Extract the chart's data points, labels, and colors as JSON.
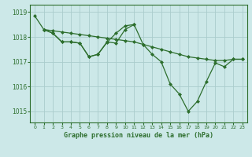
{
  "title": "Graphe pression niveau de la mer (hPa)",
  "background_color": "#cce8e8",
  "plot_bg_color": "#cce8e8",
  "bottom_bar_color": "#2d6e2d",
  "grid_color": "#aacccc",
  "line_color": "#2d6e2d",
  "ylim": [
    1014.55,
    1019.3
  ],
  "xlim": [
    -0.5,
    23.5
  ],
  "yticks": [
    1015,
    1016,
    1017,
    1018,
    1019
  ],
  "xticks": [
    0,
    1,
    2,
    3,
    4,
    5,
    6,
    7,
    8,
    9,
    10,
    11,
    12,
    13,
    14,
    15,
    16,
    17,
    18,
    19,
    20,
    21,
    22,
    23
  ],
  "series": [
    {
      "x": [
        0,
        1,
        2,
        3,
        4,
        5,
        6,
        7,
        8,
        9,
        10,
        11,
        12,
        13,
        14,
        15,
        16,
        17,
        18,
        19,
        20,
        21,
        22,
        23
      ],
      "y": [
        1018.85,
        1018.3,
        1018.15,
        1017.8,
        1017.8,
        1017.75,
        1017.2,
        1017.3,
        1017.8,
        1017.75,
        1018.3,
        1018.5,
        1017.7,
        1017.3,
        1017.0,
        1016.1,
        1015.7,
        1015.0,
        1015.4,
        1016.2,
        1016.95,
        1016.8,
        1017.1,
        1017.1
      ]
    },
    {
      "x": [
        1,
        2,
        3,
        4,
        5,
        6,
        7,
        8,
        9,
        10,
        11,
        12,
        13,
        14,
        15,
        16,
        17,
        18,
        19,
        20,
        21,
        22,
        23
      ],
      "y": [
        1018.3,
        1018.25,
        1018.2,
        1018.15,
        1018.1,
        1018.05,
        1018.0,
        1017.95,
        1017.9,
        1017.85,
        1017.8,
        1017.7,
        1017.6,
        1017.5,
        1017.4,
        1017.3,
        1017.2,
        1017.15,
        1017.1,
        1017.05,
        1017.05,
        1017.1,
        1017.1
      ]
    },
    {
      "x": [
        1,
        2,
        3,
        4,
        5,
        6,
        7,
        8,
        9,
        10,
        11
      ],
      "y": [
        1018.3,
        1018.15,
        1017.8,
        1017.8,
        1017.75,
        1017.2,
        1017.3,
        1017.78,
        1018.15,
        1018.45,
        1018.5
      ]
    }
  ]
}
